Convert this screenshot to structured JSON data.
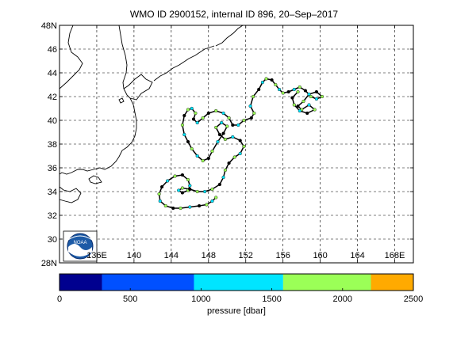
{
  "title": "WMO ID 2900152, internal ID 896, 20–Sep–2017",
  "map": {
    "lon_range": [
      132,
      170
    ],
    "lat_range": [
      28,
      48
    ],
    "x_ticks": [
      {
        "lon": 136,
        "label": "136E"
      },
      {
        "lon": 140,
        "label": "140"
      },
      {
        "lon": 144,
        "label": "144"
      },
      {
        "lon": 148,
        "label": "148"
      },
      {
        "lon": 152,
        "label": "152"
      },
      {
        "lon": 156,
        "label": "156"
      },
      {
        "lon": 160,
        "label": "160"
      },
      {
        "lon": 164,
        "label": "164"
      },
      {
        "lon": 168,
        "label": "168E"
      }
    ],
    "y_ticks": [
      {
        "lat": 48,
        "label": "48N"
      },
      {
        "lat": 46,
        "label": "46"
      },
      {
        "lat": 44,
        "label": "44"
      },
      {
        "lat": 42,
        "label": "42"
      },
      {
        "lat": 40,
        "label": "40"
      },
      {
        "lat": 38,
        "label": "38"
      },
      {
        "lat": 36,
        "label": "36"
      },
      {
        "lat": 34,
        "label": "34"
      },
      {
        "lat": 32,
        "label": "32"
      },
      {
        "lat": 30,
        "label": "30"
      },
      {
        "lat": 28,
        "label": "28N"
      }
    ],
    "grid": true,
    "logo": {
      "name": "noaa-logo",
      "text": "NOAA"
    },
    "track": {
      "line_color": "#000000",
      "points": [
        [
          148.8,
          33.5
        ],
        [
          148.4,
          33.2
        ],
        [
          147.8,
          32.9
        ],
        [
          147.0,
          32.8
        ],
        [
          146.0,
          32.7
        ],
        [
          145.0,
          32.6
        ],
        [
          144.2,
          32.6
        ],
        [
          143.4,
          32.8
        ],
        [
          142.8,
          33.2
        ],
        [
          142.7,
          33.8
        ],
        [
          143.0,
          34.4
        ],
        [
          143.6,
          34.9
        ],
        [
          144.4,
          35.3
        ],
        [
          145.2,
          35.4
        ],
        [
          145.8,
          35.0
        ],
        [
          146.0,
          34.5
        ],
        [
          145.8,
          34.1
        ],
        [
          145.2,
          33.9
        ],
        [
          144.8,
          34.1
        ],
        [
          145.2,
          34.3
        ],
        [
          146.0,
          34.2
        ],
        [
          146.8,
          34.0
        ],
        [
          147.6,
          34.0
        ],
        [
          148.4,
          34.2
        ],
        [
          149.2,
          34.6
        ],
        [
          149.6,
          35.2
        ],
        [
          149.8,
          35.8
        ],
        [
          150.2,
          36.4
        ],
        [
          150.8,
          36.9
        ],
        [
          151.4,
          37.2
        ],
        [
          151.8,
          37.8
        ],
        [
          151.4,
          38.3
        ],
        [
          150.6,
          38.6
        ],
        [
          149.8,
          38.4
        ],
        [
          149.2,
          38.8
        ],
        [
          148.8,
          39.4
        ],
        [
          149.4,
          39.8
        ],
        [
          150.0,
          39.5
        ],
        [
          149.6,
          38.9
        ],
        [
          149.0,
          38.2
        ],
        [
          148.4,
          37.4
        ],
        [
          148.0,
          36.8
        ],
        [
          147.4,
          36.6
        ],
        [
          146.8,
          37.0
        ],
        [
          146.2,
          37.6
        ],
        [
          145.8,
          38.2
        ],
        [
          145.4,
          38.8
        ],
        [
          145.2,
          39.6
        ],
        [
          145.4,
          40.4
        ],
        [
          145.8,
          40.9
        ],
        [
          146.2,
          41.0
        ],
        [
          146.6,
          40.6
        ],
        [
          146.4,
          40.1
        ],
        [
          146.8,
          39.8
        ],
        [
          147.4,
          40.2
        ],
        [
          148.0,
          40.6
        ],
        [
          148.8,
          40.8
        ],
        [
          149.6,
          40.6
        ],
        [
          150.2,
          40.2
        ],
        [
          150.6,
          39.6
        ],
        [
          151.2,
          39.6
        ],
        [
          151.8,
          40.0
        ],
        [
          152.6,
          40.2
        ],
        [
          152.9,
          40.6
        ],
        [
          152.5,
          41.2
        ],
        [
          152.8,
          42.0
        ],
        [
          153.4,
          42.6
        ],
        [
          153.8,
          43.2
        ],
        [
          154.2,
          43.5
        ],
        [
          154.8,
          43.4
        ],
        [
          155.2,
          43.0
        ],
        [
          155.6,
          42.6
        ],
        [
          156.0,
          42.3
        ],
        [
          156.6,
          42.4
        ],
        [
          157.2,
          42.6
        ],
        [
          157.8,
          42.8
        ],
        [
          158.4,
          42.5
        ],
        [
          159.0,
          42.0
        ],
        [
          159.6,
          41.8
        ],
        [
          160.2,
          42.0
        ],
        [
          159.6,
          42.4
        ],
        [
          158.8,
          42.2
        ],
        [
          158.2,
          41.6
        ],
        [
          157.6,
          41.2
        ],
        [
          158.0,
          40.9
        ],
        [
          158.8,
          41.3
        ],
        [
          159.4,
          40.9
        ],
        [
          158.6,
          40.6
        ],
        [
          157.8,
          40.8
        ],
        [
          157.2,
          41.3
        ],
        [
          157.0,
          41.9
        ],
        [
          157.6,
          42.4
        ]
      ]
    },
    "profile_colors": [
      "#9bff57",
      "#00e5ff",
      "#9bff57",
      "#000000",
      "#00e5ff",
      "#9bff57",
      "#000000"
    ]
  },
  "colorbar": {
    "label": "pressure [dbar]",
    "range": [
      0,
      2500
    ],
    "ticks": [
      0,
      500,
      1000,
      1500,
      2000,
      2500
    ],
    "bands": [
      {
        "from": 0,
        "to": 300,
        "color": "#00008f"
      },
      {
        "from": 300,
        "to": 950,
        "color": "#0050ff"
      },
      {
        "from": 950,
        "to": 1580,
        "color": "#00e5ff"
      },
      {
        "from": 1580,
        "to": 2200,
        "color": "#9bff57"
      },
      {
        "from": 2200,
        "to": 2500,
        "color": "#ffaa00"
      }
    ]
  }
}
